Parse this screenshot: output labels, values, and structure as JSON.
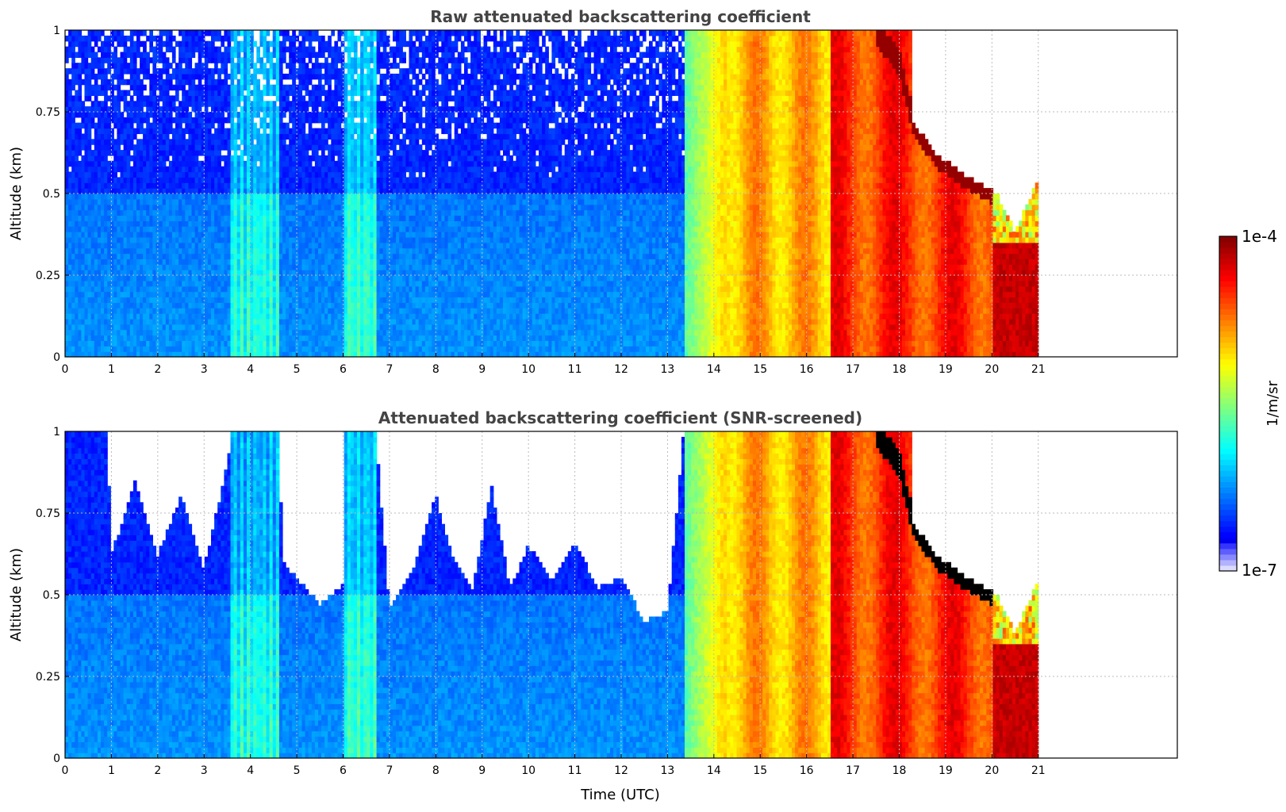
{
  "chart_data": [
    {
      "type": "heatmap",
      "title": "Raw attenuated backscattering coefficient",
      "xlabel": "",
      "ylabel": "Altitude (km)",
      "xlim": [
        0,
        24
      ],
      "ylim": [
        0,
        1
      ],
      "x_ticks": [
        "0",
        "1",
        "2",
        "3",
        "4",
        "5",
        "6",
        "7",
        "8",
        "9",
        "10",
        "11",
        "12",
        "13",
        "14",
        "15",
        "16",
        "17",
        "18",
        "19",
        "20",
        "21"
      ],
      "y_ticks": [
        "0",
        "0.25",
        "0.5",
        "0.75",
        "1"
      ],
      "grid": true,
      "data_end_time": 21,
      "colormap": "jet",
      "regimes": [
        {
          "t_start": 0,
          "t_end": 13.35,
          "level": "low",
          "note": "blue background, lower boundary layer near 0.5 km"
        },
        {
          "t_start": 3.6,
          "t_end": 4.6,
          "level": "medium",
          "note": "cyan/green vertical streaks"
        },
        {
          "t_start": 6.0,
          "t_end": 6.7,
          "level": "medium",
          "note": "cyan vertical streaks"
        },
        {
          "t_start": 13.35,
          "t_end": 20.0,
          "level": "high",
          "note": "yellow to red layer"
        },
        {
          "t_start": 20.0,
          "t_end": 21.0,
          "level": "very high",
          "note": "dark red below ~0.35 km"
        }
      ],
      "cloud_top_profile": [
        [
          17.5,
          1.0
        ],
        [
          18.0,
          0.9
        ],
        [
          18.3,
          0.72
        ],
        [
          18.8,
          0.62
        ],
        [
          19.5,
          0.55
        ],
        [
          20.1,
          0.5
        ],
        [
          20.5,
          0.38
        ],
        [
          21.0,
          0.55
        ]
      ]
    },
    {
      "type": "heatmap",
      "title": "Attenuated backscattering coefficient (SNR-screened)",
      "xlabel": "Time (UTC)",
      "ylabel": "Altitude (km)",
      "xlim": [
        0,
        24
      ],
      "ylim": [
        0,
        1
      ],
      "x_ticks": [
        "0",
        "1",
        "2",
        "3",
        "4",
        "5",
        "6",
        "7",
        "8",
        "9",
        "10",
        "11",
        "12",
        "13",
        "14",
        "15",
        "16",
        "17",
        "18",
        "19",
        "20",
        "21"
      ],
      "y_ticks": [
        "0",
        "0.25",
        "0.5",
        "0.75",
        "1"
      ],
      "grid": true,
      "data_end_time": 21,
      "colormap": "jet",
      "screened_top_profile": [
        [
          0,
          1.0
        ],
        [
          0.9,
          1.0
        ],
        [
          1.0,
          0.62
        ],
        [
          1.5,
          0.85
        ],
        [
          2.0,
          0.62
        ],
        [
          2.5,
          0.8
        ],
        [
          3.0,
          0.58
        ],
        [
          3.5,
          0.9
        ],
        [
          3.6,
          1.0
        ],
        [
          4.6,
          1.0
        ],
        [
          4.7,
          0.6
        ],
        [
          5.5,
          0.47
        ],
        [
          6.0,
          0.53
        ],
        [
          6.1,
          1.0
        ],
        [
          6.7,
          1.0
        ],
        [
          7.0,
          0.45
        ],
        [
          7.5,
          0.58
        ],
        [
          8.0,
          0.8
        ],
        [
          8.4,
          0.6
        ],
        [
          8.8,
          0.52
        ],
        [
          9.2,
          0.83
        ],
        [
          9.6,
          0.52
        ],
        [
          10.0,
          0.65
        ],
        [
          10.5,
          0.55
        ],
        [
          11.0,
          0.66
        ],
        [
          11.5,
          0.52
        ],
        [
          12.0,
          0.55
        ],
        [
          12.5,
          0.42
        ],
        [
          13.0,
          0.45
        ],
        [
          13.35,
          1.0
        ]
      ]
    }
  ],
  "colorbar": {
    "label": "1/m/sr",
    "max_label": "1e-4",
    "min_label": "1e-7",
    "min_value": 1e-07,
    "max_value": 0.0001,
    "scale": "log",
    "colors": [
      "#f0f0ff",
      "#c8c8ff",
      "#9090ff",
      "#1010ff",
      "#0050ff",
      "#00a0ff",
      "#00e0e0",
      "#40ffb0",
      "#a0ff60",
      "#f0ff20",
      "#ffc000",
      "#ff8000",
      "#ff3000",
      "#d00000",
      "#800000"
    ]
  }
}
